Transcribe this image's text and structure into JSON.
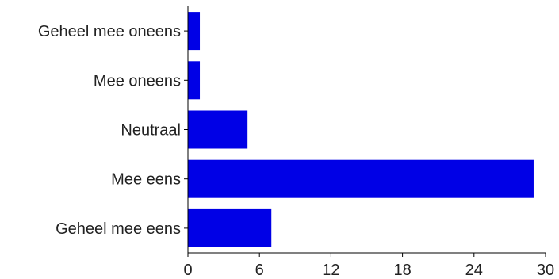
{
  "chart_data": {
    "type": "bar",
    "orientation": "horizontal",
    "categories": [
      "Geheel mee oneens",
      "Mee oneens",
      "Neutraal",
      "Mee eens",
      "Geheel mee eens"
    ],
    "values": [
      1,
      1,
      5,
      29,
      7
    ],
    "xticks": [
      "0",
      "6",
      "12",
      "18",
      "24",
      "30"
    ],
    "xlim": [
      0,
      30
    ],
    "bar_color": "#0000e6",
    "grid": false,
    "legend": "none"
  }
}
